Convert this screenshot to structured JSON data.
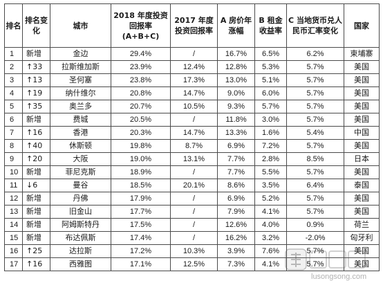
{
  "table": {
    "headers": [
      "排名",
      "排名变化",
      "城市",
      "2018 年度投资回报率(A+B+C)",
      "2017 年度投资回报率",
      "A 房价年涨幅",
      "B 租金收益率",
      "C 当地货币兑人民币汇率变化",
      "国家"
    ],
    "rows": [
      [
        "1",
        "新增",
        "金边",
        "29.4%",
        "/",
        "16.7%",
        "6.5%",
        "6.2%",
        "柬埔寨"
      ],
      [
        "2",
        "↑33",
        "拉斯维加斯",
        "23.9%",
        "12.4%",
        "12.8%",
        "5.3%",
        "5.7%",
        "美国"
      ],
      [
        "3",
        "↑13",
        "圣何塞",
        "23.8%",
        "17.3%",
        "13.0%",
        "5.1%",
        "5.7%",
        "美国"
      ],
      [
        "4",
        "↑19",
        "纳什维尔",
        "20.8%",
        "14.7%",
        "9.0%",
        "6.0%",
        "5.7%",
        "美国"
      ],
      [
        "5",
        "↑35",
        "奥兰多",
        "20.7%",
        "10.5%",
        "9.3%",
        "5.7%",
        "5.7%",
        "美国"
      ],
      [
        "6",
        "新增",
        "费城",
        "20.5%",
        "/",
        "11.8%",
        "3.0%",
        "5.7%",
        "美国"
      ],
      [
        "7",
        "↑16",
        "香港",
        "20.3%",
        "14.7%",
        "13.3%",
        "1.6%",
        "5.4%",
        "中国"
      ],
      [
        "8",
        "↑40",
        "休斯顿",
        "19.8%",
        "8.7%",
        "6.9%",
        "7.2%",
        "5.7%",
        "美国"
      ],
      [
        "9",
        "↑20",
        "大阪",
        "19.0%",
        "13.1%",
        "7.7%",
        "2.8%",
        "8.5%",
        "日本"
      ],
      [
        "10",
        "新增",
        "菲尼克斯",
        "18.9%",
        "/",
        "7.7%",
        "5.5%",
        "5.7%",
        "美国"
      ],
      [
        "11",
        "↓6",
        "曼谷",
        "18.5%",
        "20.1%",
        "8.6%",
        "3.5%",
        "6.4%",
        "泰国"
      ],
      [
        "12",
        "新增",
        "丹佛",
        "17.9%",
        "/",
        "6.9%",
        "5.2%",
        "5.7%",
        "美国"
      ],
      [
        "13",
        "新增",
        "旧金山",
        "17.7%",
        "/",
        "7.9%",
        "4.1%",
        "5.7%",
        "美国"
      ],
      [
        "14",
        "新增",
        "阿姆斯特丹",
        "17.5%",
        "/",
        "12.6%",
        "4.0%",
        "0.9%",
        "荷兰"
      ],
      [
        "15",
        "新增",
        "布达佩斯",
        "17.4%",
        "/",
        "16.2%",
        "3.2%",
        "-2.0%",
        "匈牙利"
      ],
      [
        "16",
        "↑25",
        "达拉斯",
        "17.2%",
        "10.3%",
        "3.9%",
        "7.6%",
        "5.7%",
        "美国"
      ],
      [
        "17",
        "↑16",
        "西雅图",
        "17.1%",
        "12.5%",
        "7.3%",
        "4.1%",
        "5.7%",
        "美国"
      ]
    ]
  },
  "watermark": {
    "text": "lusongsong.com"
  }
}
